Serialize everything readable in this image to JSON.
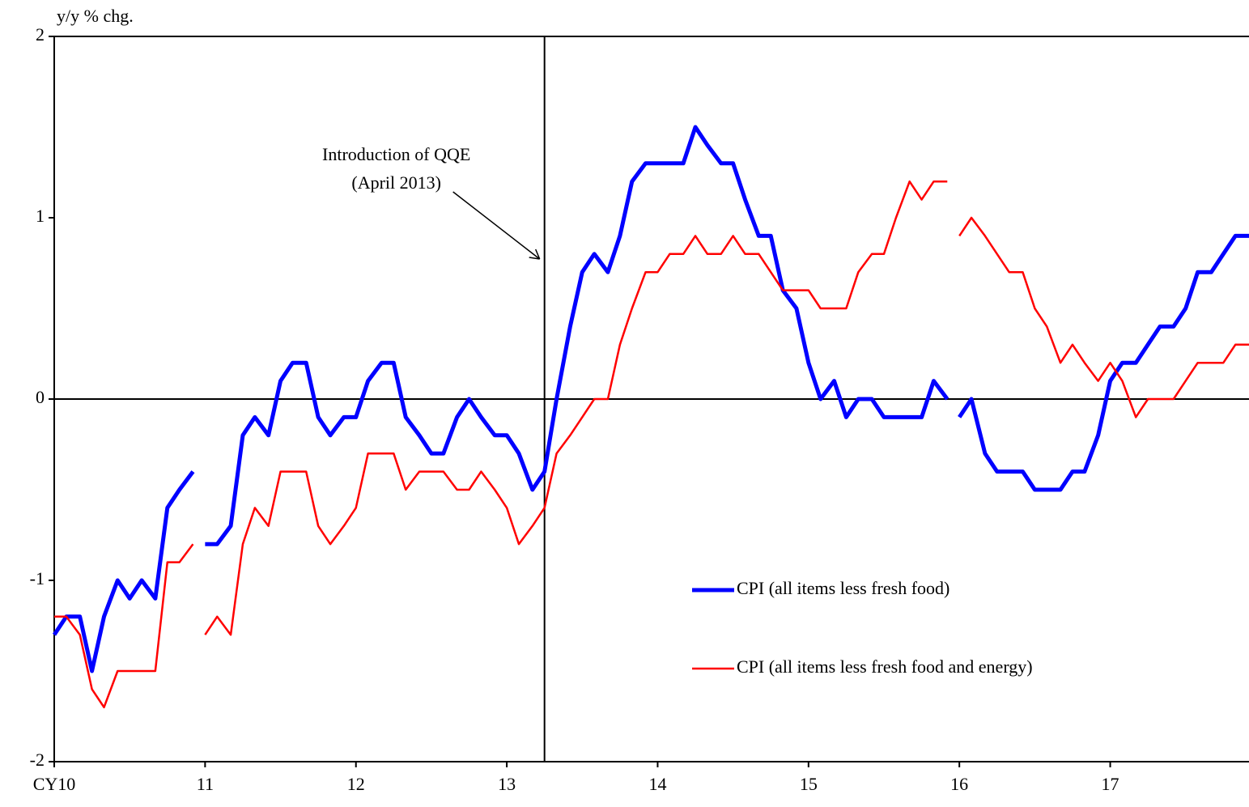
{
  "chart_data": {
    "type": "line",
    "y_axis_label": "y/y % chg.",
    "segments": [
      {
        "x": [
          2010,
          2010.08,
          2010.17,
          2010.25,
          2010.33,
          2010.42,
          2010.5,
          2010.58,
          2010.67,
          2010.75,
          2010.83,
          2010.92
        ]
      },
      {
        "x": [
          2011,
          2011.08,
          2011.17,
          2011.25,
          2011.33,
          2011.42,
          2011.5,
          2011.58,
          2011.67,
          2011.75,
          2011.83,
          2011.92,
          2012,
          2012.08,
          2012.17,
          2012.25,
          2012.33,
          2012.42,
          2012.5,
          2012.58,
          2012.67,
          2012.75,
          2012.83,
          2012.92,
          2013,
          2013.08,
          2013.17,
          2013.25,
          2013.33,
          2013.42,
          2013.5,
          2013.58,
          2013.67,
          2013.75,
          2013.83,
          2013.92,
          2014,
          2014.08,
          2014.17,
          2014.25,
          2014.33,
          2014.42,
          2014.5,
          2014.58,
          2014.67,
          2014.75,
          2014.83,
          2014.92,
          2015,
          2015.08,
          2015.17,
          2015.25,
          2015.33,
          2015.42,
          2015.5,
          2015.58,
          2015.67,
          2015.75,
          2015.83,
          2015.92
        ]
      },
      {
        "x": [
          2016,
          2016.08,
          2016.17,
          2016.25,
          2016.33,
          2016.42,
          2016.5,
          2016.58,
          2016.67,
          2016.75,
          2016.83,
          2016.92,
          2017,
          2017.08,
          2017.17,
          2017.25,
          2017.33,
          2017.42,
          2017.5,
          2017.58,
          2017.67,
          2017.75,
          2017.83,
          2017.92
        ]
      }
    ],
    "series": [
      {
        "name": "CPI (all items less fresh food)",
        "color": "#0000ff",
        "width": 5,
        "values": [
          [
            -1.3,
            -1.2,
            -1.2,
            -1.5,
            -1.2,
            -1.0,
            -1.1,
            -1.0,
            -1.1,
            -0.6,
            -0.5,
            -0.4
          ],
          [
            -0.8,
            -0.8,
            -0.7,
            -0.2,
            -0.1,
            -0.2,
            0.1,
            0.2,
            0.2,
            -0.1,
            -0.2,
            -0.1,
            -0.1,
            0.1,
            0.2,
            0.2,
            -0.1,
            -0.2,
            -0.3,
            -0.3,
            -0.1,
            0.0,
            -0.1,
            -0.2,
            -0.2,
            -0.3,
            -0.5,
            -0.4,
            0.0,
            0.4,
            0.7,
            0.8,
            0.7,
            0.9,
            1.2,
            1.3,
            1.3,
            1.3,
            1.3,
            1.5,
            1.4,
            1.3,
            1.3,
            1.1,
            0.9,
            0.9,
            0.6,
            0.5,
            0.2,
            0.0,
            0.1,
            -0.1,
            0.0,
            0.0,
            -0.1,
            -0.1,
            -0.1,
            -0.1,
            0.1,
            0.0
          ],
          [
            -0.1,
            0.0,
            -0.3,
            -0.4,
            -0.4,
            -0.4,
            -0.5,
            -0.5,
            -0.5,
            -0.4,
            -0.4,
            -0.2,
            0.1,
            0.2,
            0.2,
            0.3,
            0.4,
            0.4,
            0.5,
            0.7,
            0.7,
            0.8,
            0.9,
            0.9
          ]
        ]
      },
      {
        "name": "CPI (all items less fresh food and energy)",
        "color": "#ff0000",
        "width": 2.5,
        "values": [
          [
            -1.2,
            -1.2,
            -1.3,
            -1.6,
            -1.7,
            -1.5,
            -1.5,
            -1.5,
            -1.5,
            -0.9,
            -0.9,
            -0.8
          ],
          [
            -1.3,
            -1.2,
            -1.3,
            -0.8,
            -0.6,
            -0.7,
            -0.4,
            -0.4,
            -0.4,
            -0.7,
            -0.8,
            -0.7,
            -0.6,
            -0.3,
            -0.3,
            -0.3,
            -0.5,
            -0.4,
            -0.4,
            -0.4,
            -0.5,
            -0.5,
            -0.4,
            -0.5,
            -0.6,
            -0.8,
            -0.7,
            -0.6,
            -0.3,
            -0.2,
            -0.1,
            0.0,
            0.0,
            0.3,
            0.5,
            0.7,
            0.7,
            0.8,
            0.8,
            0.9,
            0.8,
            0.8,
            0.9,
            0.8,
            0.8,
            0.7,
            0.6,
            0.6,
            0.6,
            0.5,
            0.5,
            0.5,
            0.7,
            0.8,
            0.8,
            1.0,
            1.2,
            1.1,
            1.2,
            1.2
          ],
          [
            0.9,
            1.0,
            0.9,
            0.8,
            0.7,
            0.7,
            0.5,
            0.4,
            0.2,
            0.3,
            0.2,
            0.1,
            0.2,
            0.1,
            -0.1,
            0.0,
            0.0,
            0.0,
            0.1,
            0.2,
            0.2,
            0.2,
            0.3,
            0.3
          ]
        ]
      }
    ],
    "xlim": [
      2010,
      2017.92
    ],
    "xticks": [
      {
        "value": 2010,
        "label": "CY10"
      },
      {
        "value": 2011,
        "label": "11"
      },
      {
        "value": 2012,
        "label": "12"
      },
      {
        "value": 2013,
        "label": "13"
      },
      {
        "value": 2014,
        "label": "14"
      },
      {
        "value": 2015,
        "label": "15"
      },
      {
        "value": 2016,
        "label": "16"
      },
      {
        "value": 2017,
        "label": "17"
      }
    ],
    "ylim": [
      -2,
      2
    ],
    "yticks": [
      -2,
      -1,
      0,
      1,
      2
    ],
    "legend": "lower right",
    "annotation": {
      "lines": [
        "Introduction of QQE",
        "(April 2013)"
      ],
      "x": 2013.25
    }
  }
}
